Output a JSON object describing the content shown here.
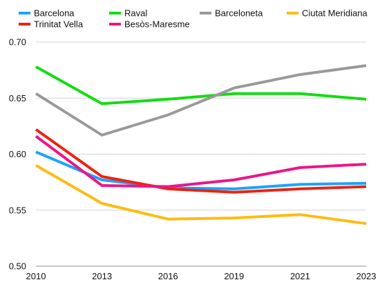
{
  "chart_data": {
    "type": "line",
    "title": "",
    "xlabel": "",
    "ylabel": "",
    "x": [
      "2010",
      "2013",
      "2016",
      "2019",
      "2021",
      "2023"
    ],
    "ylim": [
      0.5,
      0.7
    ],
    "yticks": [
      "0.50",
      "0.55",
      "0.60",
      "0.65",
      "0.70"
    ],
    "grid": "horizontal",
    "legend_position": "top",
    "series": [
      {
        "name": "Barcelona",
        "color": "#1aa3ff",
        "values": [
          0.602,
          0.577,
          0.57,
          0.569,
          0.573,
          0.574
        ]
      },
      {
        "name": "Trinitat Vella",
        "color": "#ee2211",
        "values": [
          0.622,
          0.58,
          0.569,
          0.566,
          0.569,
          0.571
        ]
      },
      {
        "name": "Raval",
        "color": "#11dd11",
        "values": [
          0.678,
          0.645,
          0.649,
          0.654,
          0.654,
          0.649
        ]
      },
      {
        "name": "Besòs-Maresme",
        "color": "#ee1488",
        "values": [
          0.616,
          0.572,
          0.571,
          0.577,
          0.588,
          0.591
        ]
      },
      {
        "name": "Barceloneta",
        "color": "#999999",
        "values": [
          0.654,
          0.617,
          0.635,
          0.659,
          0.671,
          0.679
        ]
      },
      {
        "name": "Ciutat Meridiana",
        "color": "#ffbb11",
        "values": [
          0.59,
          0.556,
          0.542,
          0.543,
          0.546,
          0.538
        ]
      }
    ]
  }
}
